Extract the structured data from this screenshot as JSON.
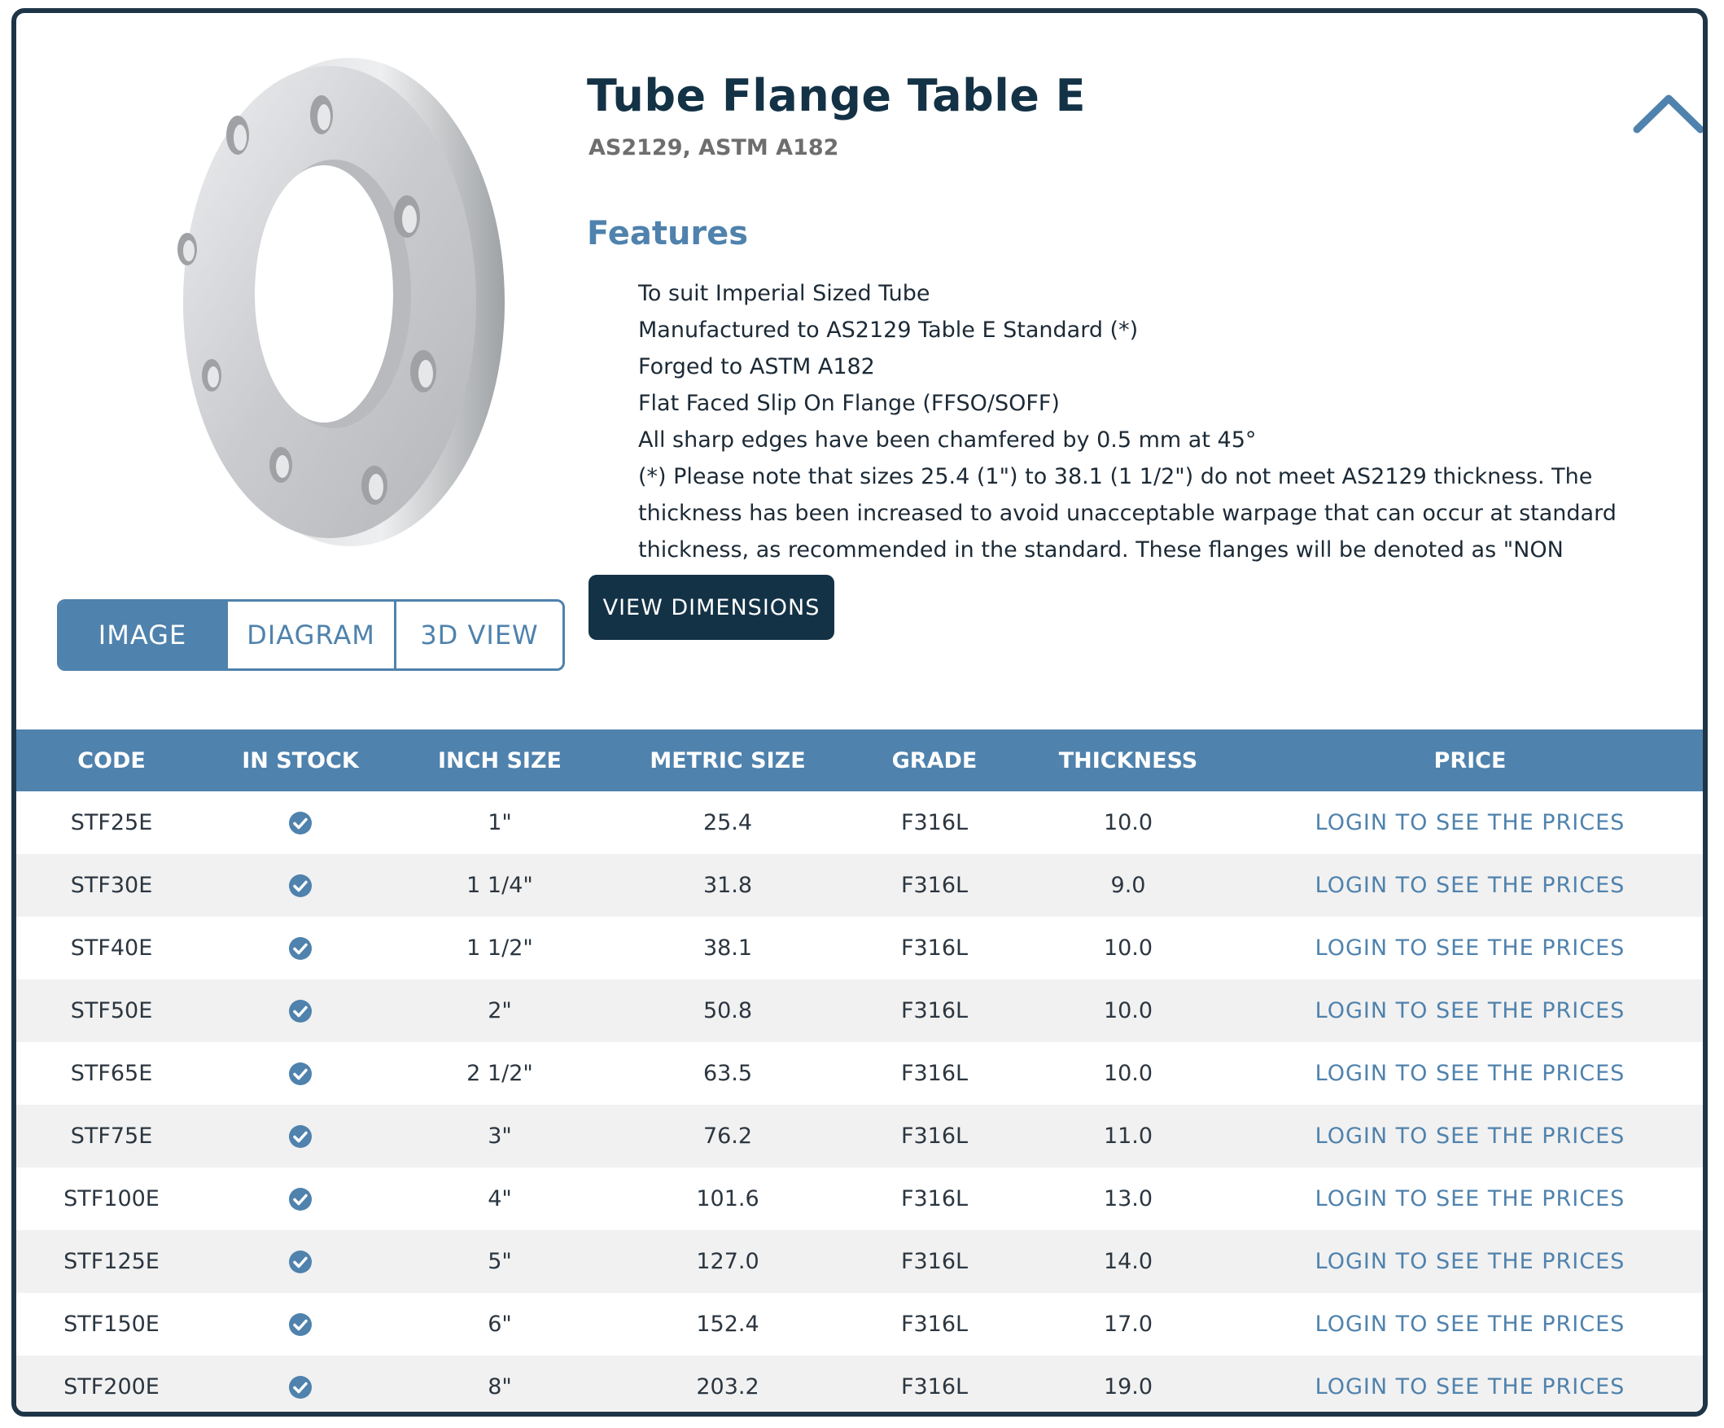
{
  "product": {
    "title": "Tube Flange Table E",
    "subtitle": "AS2129, ASTM A182",
    "features_heading": "Features",
    "features": [
      "To suit Imperial Sized Tube",
      "Manufactured to AS2129 Table E Standard (*)",
      "Forged to ASTM A182",
      "Flat Faced Slip On Flange (FFSO/SOFF)",
      "All sharp edges have been chamfered by 0.5 mm at 45°",
      "(*) Please note that sizes 25.4 (1\") to 38.1 (1 1/2\") do not meet AS2129 thickness. The thickness has been increased to avoid unacceptable warpage that can occur at standard thickness, as recommended in the standard. These flanges will be denoted as \"NON STANDARD\"."
    ],
    "view_dimensions_label": "VIEW DIMENSIONS",
    "collapse_icon": "chevron-up-icon"
  },
  "tabs": [
    {
      "label": "IMAGE",
      "active": true
    },
    {
      "label": "DIAGRAM",
      "active": false
    },
    {
      "label": "3D VIEW",
      "active": false
    }
  ],
  "table": {
    "headers": [
      "CODE",
      "IN STOCK",
      "INCH SIZE",
      "METRIC SIZE",
      "GRADE",
      "THICKNESS",
      "PRICE"
    ],
    "price_label": "LOGIN TO SEE THE PRICES",
    "rows": [
      {
        "code": "STF25E",
        "in_stock": true,
        "inch": "1\"",
        "metric": "25.4",
        "grade": "F316L",
        "thickness": "10.0"
      },
      {
        "code": "STF30E",
        "in_stock": true,
        "inch": "1 1/4\"",
        "metric": "31.8",
        "grade": "F316L",
        "thickness": "9.0"
      },
      {
        "code": "STF40E",
        "in_stock": true,
        "inch": "1 1/2\"",
        "metric": "38.1",
        "grade": "F316L",
        "thickness": "10.0"
      },
      {
        "code": "STF50E",
        "in_stock": true,
        "inch": "2\"",
        "metric": "50.8",
        "grade": "F316L",
        "thickness": "10.0"
      },
      {
        "code": "STF65E",
        "in_stock": true,
        "inch": "2 1/2\"",
        "metric": "63.5",
        "grade": "F316L",
        "thickness": "10.0"
      },
      {
        "code": "STF75E",
        "in_stock": true,
        "inch": "3\"",
        "metric": "76.2",
        "grade": "F316L",
        "thickness": "11.0"
      },
      {
        "code": "STF100E",
        "in_stock": true,
        "inch": "4\"",
        "metric": "101.6",
        "grade": "F316L",
        "thickness": "13.0"
      },
      {
        "code": "STF125E",
        "in_stock": true,
        "inch": "5\"",
        "metric": "127.0",
        "grade": "F316L",
        "thickness": "14.0"
      },
      {
        "code": "STF150E",
        "in_stock": true,
        "inch": "6\"",
        "metric": "152.4",
        "grade": "F316L",
        "thickness": "17.0"
      },
      {
        "code": "STF200E",
        "in_stock": true,
        "inch": "8\"",
        "metric": "203.2",
        "grade": "F316L",
        "thickness": "19.0"
      }
    ]
  },
  "colors": {
    "navy": "#143246",
    "accent": "#4f82ad",
    "stock_check": "#4f82ad"
  }
}
